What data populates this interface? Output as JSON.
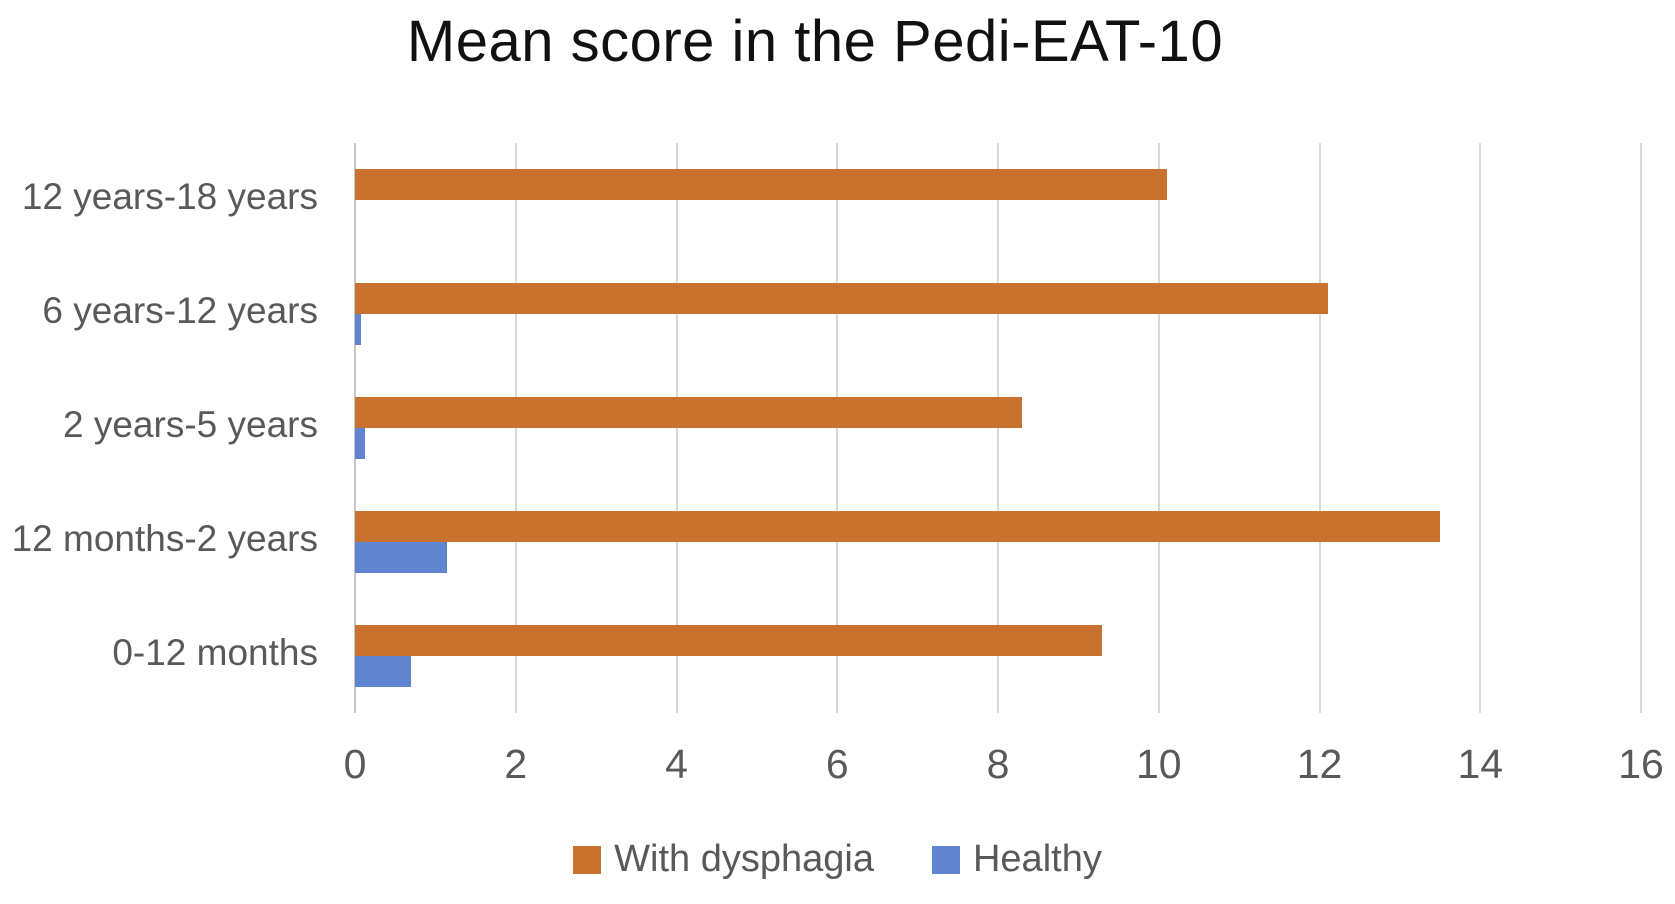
{
  "title": "Mean score in the Pedi-EAT-10",
  "colors": {
    "dysphagia_orange": "#c9712f",
    "healthy_blue": "#5f85d0",
    "label_gray": "#595959",
    "gridline_gray": "#d9d9d9",
    "axis_gray": "#c6c6c6"
  },
  "legend": {
    "items": [
      {
        "label": "With dysphagia",
        "color": "#c9712f"
      },
      {
        "label": "Healthy",
        "color": "#5f85d0"
      }
    ],
    "position": "bottom"
  },
  "chart_data": {
    "type": "bar",
    "orientation": "horizontal",
    "title": "Mean score in the Pedi-EAT-10",
    "categories_top_to_bottom": [
      "12 years-18 years",
      "6 years-12 years",
      "2 years-5 years",
      "12 months-2 years",
      "0-12 months"
    ],
    "series": [
      {
        "name": "With dysphagia",
        "color": "#c9712f",
        "values": [
          10.1,
          12.1,
          8.3,
          13.5,
          9.3
        ]
      },
      {
        "name": "Healthy",
        "color": "#5f85d0",
        "values": [
          0,
          0.07,
          0.12,
          1.15,
          0.7
        ]
      }
    ],
    "xlabel": "",
    "ylabel": "",
    "xlim": [
      0,
      16
    ],
    "x_ticks": [
      0,
      2,
      4,
      6,
      8,
      10,
      12,
      14,
      16
    ],
    "grid": true,
    "legend_position": "bottom"
  }
}
